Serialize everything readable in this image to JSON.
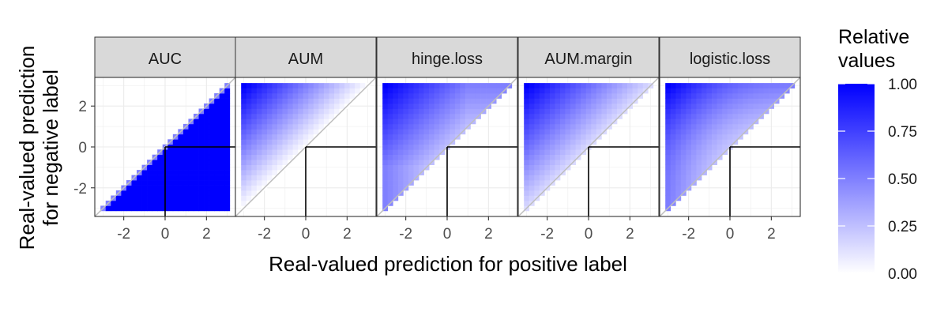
{
  "chart_data": {
    "type": "heatmap",
    "facets": [
      "AUC",
      "AUM",
      "hinge.loss",
      "AUM.margin",
      "logistic.loss"
    ],
    "xlabel": "Real-valued prediction for positive label",
    "ylabel_lines": [
      "Real-valued prediction",
      "for negative label"
    ],
    "x_ticks": [
      "-2",
      "0",
      "2"
    ],
    "y_ticks": [
      "2",
      "0",
      "-2"
    ],
    "tick_values": [
      -2,
      0,
      2
    ],
    "xlim": [
      -3.4,
      3.4
    ],
    "ylim": [
      -3.4,
      3.4
    ],
    "grid_range": [
      -3,
      3
    ],
    "grid_step": 0.25,
    "fill_scale": {
      "title_lines": [
        "Relative",
        "values"
      ],
      "low_color": "#ffffff",
      "high_color": "#0000ff",
      "limits": [
        0,
        1
      ],
      "breaks": [
        "0.00",
        "0.25",
        "0.50",
        "0.75",
        "1.00"
      ]
    },
    "reference_lines": {
      "diagonal": "y = x (grey)",
      "threshold_segments": "x = 0 for y <= 0 and y = 0 for x >= 0 (black)"
    },
    "colors": {
      "strip_fill": "#d9d9d9",
      "panel_border": "#333333",
      "grid": "#ebebeb",
      "diagonal": "#bebebe",
      "threshold": "#000000"
    }
  }
}
